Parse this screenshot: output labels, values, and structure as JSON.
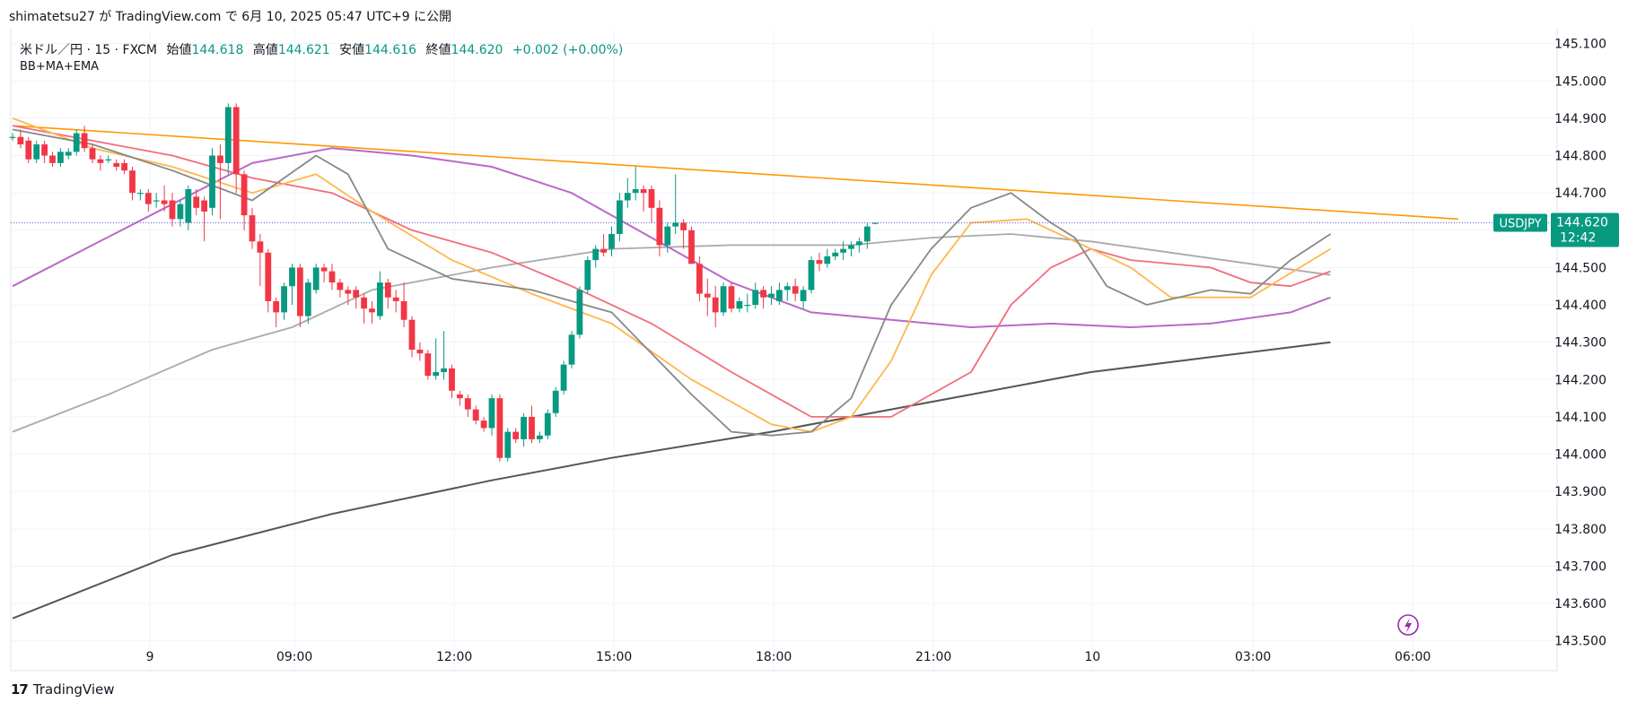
{
  "caption": "shimatetsu27 が TradingView.com で 6月 10, 2025 05:47 UTC+9 に公開",
  "legend": {
    "symbol": "米ドル／円 · 15 · FXCM",
    "open_label": "始値",
    "open": "144.618",
    "high_label": "高値",
    "high": "144.621",
    "low_label": "安値",
    "low": "144.616",
    "close_label": "終値",
    "close": "144.620",
    "change": "+0.002 (+0.00%)",
    "indicators": "BB+MA+EMA"
  },
  "price_tag": {
    "symbol": "USDJPY",
    "price": "144.620",
    "countdown": "12:42"
  },
  "footer": {
    "brand": "TradingView",
    "logo_text": "17"
  },
  "icons": {
    "lightning": "lightning-icon"
  },
  "colors": {
    "up": "#089981",
    "down": "#F23645",
    "trend": "#FF9800"
  },
  "chart_data": {
    "type": "candlestick",
    "symbol": "USDJPY",
    "interval": "15",
    "ylim": [
      143.42,
      145.14
    ],
    "y_ticks": [
      "145.100",
      "145.000",
      "144.900",
      "144.800",
      "144.700",
      "144.600",
      "144.500",
      "144.400",
      "144.300",
      "144.200",
      "144.100",
      "144.000",
      "143.900",
      "143.800",
      "143.700",
      "143.600",
      "143.500"
    ],
    "x_ticks": [
      {
        "label": "9",
        "index": 17.2
      },
      {
        "label": "09:00",
        "index": 35.3
      },
      {
        "label": "12:00",
        "index": 55.3
      },
      {
        "label": "15:00",
        "index": 75.3
      },
      {
        "label": "18:00",
        "index": 95.3
      },
      {
        "label": "21:00",
        "index": 115.3
      },
      {
        "label": "10",
        "index": 135.2
      },
      {
        "label": "03:00",
        "index": 155.3
      },
      {
        "label": "06:00",
        "index": 175.3
      }
    ],
    "candles": [
      [
        144.85,
        144.86,
        144.84,
        144.85
      ],
      [
        144.85,
        144.87,
        144.82,
        144.83
      ],
      [
        144.84,
        144.85,
        144.78,
        144.79
      ],
      [
        144.79,
        144.84,
        144.78,
        144.83
      ],
      [
        144.83,
        144.84,
        144.78,
        144.8
      ],
      [
        144.8,
        144.81,
        144.77,
        144.78
      ],
      [
        144.78,
        144.82,
        144.77,
        144.81
      ],
      [
        144.8,
        144.82,
        144.79,
        144.81
      ],
      [
        144.81,
        144.87,
        144.8,
        144.86
      ],
      [
        144.86,
        144.88,
        144.81,
        144.82
      ],
      [
        144.82,
        144.83,
        144.78,
        144.79
      ],
      [
        144.79,
        144.8,
        144.76,
        144.78
      ],
      [
        144.79,
        144.8,
        144.78,
        144.79
      ],
      [
        144.78,
        144.79,
        144.76,
        144.77
      ],
      [
        144.78,
        144.79,
        144.75,
        144.76
      ],
      [
        144.76,
        144.77,
        144.68,
        144.7
      ],
      [
        144.7,
        144.71,
        144.68,
        144.7
      ],
      [
        144.7,
        144.71,
        144.65,
        144.67
      ],
      [
        144.68,
        144.7,
        144.66,
        144.68
      ],
      [
        144.68,
        144.72,
        144.65,
        144.67
      ],
      [
        144.68,
        144.7,
        144.61,
        144.63
      ],
      [
        144.63,
        144.68,
        144.61,
        144.67
      ],
      [
        144.62,
        144.72,
        144.6,
        144.71
      ],
      [
        144.69,
        144.71,
        144.64,
        144.66
      ],
      [
        144.68,
        144.69,
        144.57,
        144.65
      ],
      [
        144.66,
        144.82,
        144.64,
        144.8
      ],
      [
        144.8,
        144.83,
        144.63,
        144.78
      ],
      [
        144.78,
        144.94,
        144.75,
        144.93
      ],
      [
        144.93,
        144.94,
        144.7,
        144.75
      ],
      [
        144.75,
        144.76,
        144.6,
        144.64
      ],
      [
        144.64,
        144.66,
        144.55,
        144.57
      ],
      [
        144.57,
        144.59,
        144.45,
        144.54
      ],
      [
        144.54,
        144.55,
        144.38,
        144.41
      ],
      [
        144.41,
        144.42,
        144.34,
        144.38
      ],
      [
        144.38,
        144.46,
        144.36,
        144.45
      ],
      [
        144.45,
        144.51,
        144.4,
        144.5
      ],
      [
        144.5,
        144.51,
        144.34,
        144.37
      ],
      [
        144.37,
        144.47,
        144.35,
        144.46
      ],
      [
        144.44,
        144.51,
        144.43,
        144.5
      ],
      [
        144.5,
        144.51,
        144.46,
        144.49
      ],
      [
        144.49,
        144.51,
        144.44,
        144.46
      ],
      [
        144.46,
        144.47,
        144.42,
        144.44
      ],
      [
        144.44,
        144.45,
        144.4,
        144.43
      ],
      [
        144.44,
        144.45,
        144.39,
        144.42
      ],
      [
        144.42,
        144.43,
        144.35,
        144.39
      ],
      [
        144.39,
        144.41,
        144.35,
        144.38
      ],
      [
        144.37,
        144.49,
        144.36,
        144.46
      ],
      [
        144.46,
        144.47,
        144.39,
        144.42
      ],
      [
        144.42,
        144.44,
        144.38,
        144.41
      ],
      [
        144.41,
        144.46,
        144.34,
        144.36
      ],
      [
        144.36,
        144.37,
        144.26,
        144.28
      ],
      [
        144.28,
        144.3,
        144.25,
        144.27
      ],
      [
        144.27,
        144.28,
        144.2,
        144.21
      ],
      [
        144.21,
        144.31,
        144.2,
        144.22
      ],
      [
        144.22,
        144.33,
        144.2,
        144.23
      ],
      [
        144.23,
        144.24,
        144.15,
        144.17
      ],
      [
        144.16,
        144.17,
        144.13,
        144.15
      ],
      [
        144.15,
        144.16,
        144.1,
        144.12
      ],
      [
        144.12,
        144.13,
        144.08,
        144.09
      ],
      [
        144.09,
        144.1,
        144.06,
        144.07
      ],
      [
        144.07,
        144.16,
        144.05,
        144.15
      ],
      [
        144.15,
        144.16,
        143.98,
        143.99
      ],
      [
        143.99,
        144.07,
        143.98,
        144.06
      ],
      [
        144.06,
        144.07,
        144.03,
        144.04
      ],
      [
        144.04,
        144.11,
        144.02,
        144.1
      ],
      [
        144.1,
        144.13,
        144.03,
        144.04
      ],
      [
        144.04,
        144.06,
        144.03,
        144.05
      ],
      [
        144.05,
        144.12,
        144.04,
        144.11
      ],
      [
        144.11,
        144.18,
        144.1,
        144.17
      ],
      [
        144.17,
        144.25,
        144.16,
        144.24
      ],
      [
        144.24,
        144.33,
        144.23,
        144.32
      ],
      [
        144.32,
        144.45,
        144.31,
        144.44
      ],
      [
        144.44,
        144.53,
        144.43,
        144.52
      ],
      [
        144.52,
        144.56,
        144.5,
        144.55
      ],
      [
        144.55,
        144.59,
        144.53,
        144.54
      ],
      [
        144.55,
        144.61,
        144.53,
        144.59
      ],
      [
        144.59,
        144.7,
        144.57,
        144.68
      ],
      [
        144.68,
        144.74,
        144.66,
        144.7
      ],
      [
        144.7,
        144.77,
        144.68,
        144.71
      ],
      [
        144.71,
        144.72,
        144.65,
        144.7
      ],
      [
        144.71,
        144.72,
        144.62,
        144.66
      ],
      [
        144.66,
        144.68,
        144.53,
        144.56
      ],
      [
        144.56,
        144.62,
        144.54,
        144.61
      ],
      [
        144.61,
        144.75,
        144.59,
        144.62
      ],
      [
        144.62,
        144.63,
        144.55,
        144.6
      ],
      [
        144.6,
        144.61,
        144.51,
        144.51
      ],
      [
        144.51,
        144.53,
        144.41,
        144.43
      ],
      [
        144.43,
        144.47,
        144.37,
        144.42
      ],
      [
        144.42,
        144.45,
        144.34,
        144.38
      ],
      [
        144.38,
        144.46,
        144.37,
        144.45
      ],
      [
        144.45,
        144.46,
        144.38,
        144.39
      ],
      [
        144.39,
        144.42,
        144.38,
        144.41
      ],
      [
        144.4,
        144.43,
        144.38,
        144.4
      ],
      [
        144.4,
        144.46,
        144.39,
        144.44
      ],
      [
        144.44,
        144.45,
        144.39,
        144.42
      ],
      [
        144.42,
        144.45,
        144.4,
        144.43
      ],
      [
        144.41,
        144.46,
        144.4,
        144.44
      ],
      [
        144.44,
        144.46,
        144.41,
        144.45
      ],
      [
        144.45,
        144.47,
        144.41,
        144.43
      ],
      [
        144.41,
        144.45,
        144.39,
        144.44
      ],
      [
        144.44,
        144.53,
        144.43,
        144.52
      ],
      [
        144.52,
        144.54,
        144.49,
        144.51
      ],
      [
        144.51,
        144.55,
        144.5,
        144.53
      ],
      [
        144.53,
        144.55,
        144.52,
        144.54
      ],
      [
        144.54,
        144.57,
        144.52,
        144.55
      ],
      [
        144.55,
        144.57,
        144.53,
        144.56
      ],
      [
        144.56,
        144.58,
        144.54,
        144.57
      ],
      [
        144.57,
        144.62,
        144.55,
        144.61
      ],
      [
        144.618,
        144.621,
        144.616,
        144.62
      ]
    ],
    "series": [
      {
        "color": "#FF9800",
        "width": 1.6,
        "points": [
          [
            0,
            144.88
          ],
          [
            181,
            144.63
          ]
        ]
      },
      {
        "color": "#555555",
        "width": 2,
        "points": [
          [
            0,
            143.56
          ],
          [
            20,
            143.73
          ],
          [
            40,
            143.84
          ],
          [
            60,
            143.93
          ],
          [
            75,
            143.99
          ],
          [
            95,
            144.06
          ],
          [
            110,
            144.12
          ],
          [
            120,
            144.16
          ],
          [
            135,
            144.22
          ],
          [
            150,
            144.26
          ],
          [
            165,
            144.3
          ]
        ]
      },
      {
        "color": "#AAAAAA",
        "width": 1.8,
        "points": [
          [
            0,
            144.06
          ],
          [
            12,
            144.16
          ],
          [
            25,
            144.28
          ],
          [
            35,
            144.34
          ],
          [
            45,
            144.44
          ],
          [
            60,
            144.5
          ],
          [
            75,
            144.55
          ],
          [
            90,
            144.56
          ],
          [
            105,
            144.56
          ],
          [
            115,
            144.58
          ],
          [
            125,
            144.59
          ],
          [
            135,
            144.57
          ],
          [
            145,
            144.54
          ],
          [
            155,
            144.51
          ],
          [
            165,
            144.48
          ]
        ]
      },
      {
        "color": "#BA68C8",
        "width": 2,
        "points": [
          [
            0,
            144.45
          ],
          [
            10,
            144.56
          ],
          [
            20,
            144.67
          ],
          [
            30,
            144.78
          ],
          [
            40,
            144.82
          ],
          [
            50,
            144.8
          ],
          [
            60,
            144.77
          ],
          [
            70,
            144.7
          ],
          [
            80,
            144.58
          ],
          [
            90,
            144.46
          ],
          [
            100,
            144.38
          ],
          [
            110,
            144.36
          ],
          [
            120,
            144.34
          ],
          [
            130,
            144.35
          ],
          [
            140,
            144.34
          ],
          [
            150,
            144.35
          ],
          [
            160,
            144.38
          ],
          [
            165,
            144.42
          ]
        ]
      },
      {
        "color": "#F06E7A",
        "width": 1.8,
        "points": [
          [
            0,
            144.88
          ],
          [
            10,
            144.84
          ],
          [
            20,
            144.8
          ],
          [
            30,
            144.74
          ],
          [
            40,
            144.7
          ],
          [
            50,
            144.6
          ],
          [
            60,
            144.54
          ],
          [
            70,
            144.45
          ],
          [
            80,
            144.35
          ],
          [
            90,
            144.22
          ],
          [
            100,
            144.1
          ],
          [
            110,
            144.1
          ],
          [
            120,
            144.22
          ],
          [
            125,
            144.4
          ],
          [
            130,
            144.5
          ],
          [
            135,
            144.55
          ],
          [
            140,
            144.52
          ],
          [
            150,
            144.5
          ],
          [
            155,
            144.46
          ],
          [
            160,
            144.45
          ],
          [
            165,
            144.49
          ]
        ]
      },
      {
        "color": "#FFB74D",
        "width": 1.8,
        "points": [
          [
            0,
            144.9
          ],
          [
            10,
            144.82
          ],
          [
            20,
            144.77
          ],
          [
            30,
            144.7
          ],
          [
            38,
            144.75
          ],
          [
            45,
            144.65
          ],
          [
            55,
            144.52
          ],
          [
            65,
            144.43
          ],
          [
            75,
            144.35
          ],
          [
            85,
            144.2
          ],
          [
            95,
            144.08
          ],
          [
            100,
            144.06
          ],
          [
            105,
            144.1
          ],
          [
            110,
            144.25
          ],
          [
            115,
            144.48
          ],
          [
            120,
            144.62
          ],
          [
            127,
            144.63
          ],
          [
            135,
            144.55
          ],
          [
            140,
            144.5
          ],
          [
            145,
            144.42
          ],
          [
            155,
            144.42
          ],
          [
            165,
            144.55
          ]
        ]
      },
      {
        "color": "#888888",
        "width": 1.8,
        "points": [
          [
            0,
            144.87
          ],
          [
            10,
            144.83
          ],
          [
            20,
            144.76
          ],
          [
            30,
            144.68
          ],
          [
            38,
            144.8
          ],
          [
            42,
            144.75
          ],
          [
            47,
            144.55
          ],
          [
            55,
            144.47
          ],
          [
            65,
            144.44
          ],
          [
            75,
            144.38
          ],
          [
            85,
            144.16
          ],
          [
            90,
            144.06
          ],
          [
            95,
            144.05
          ],
          [
            100,
            144.06
          ],
          [
            105,
            144.15
          ],
          [
            110,
            144.4
          ],
          [
            115,
            144.55
          ],
          [
            120,
            144.66
          ],
          [
            125,
            144.7
          ],
          [
            130,
            144.62
          ],
          [
            133,
            144.58
          ],
          [
            137,
            144.45
          ],
          [
            142,
            144.4
          ],
          [
            150,
            144.44
          ],
          [
            155,
            144.43
          ],
          [
            160,
            144.52
          ],
          [
            165,
            144.59
          ]
        ]
      }
    ]
  }
}
